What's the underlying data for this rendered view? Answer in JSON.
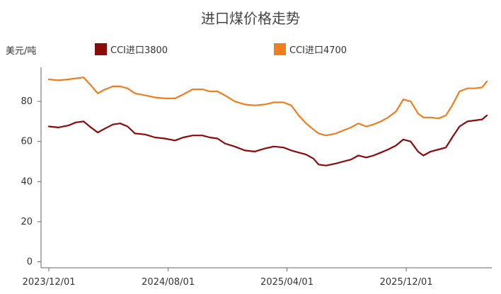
{
  "chart_data": {
    "type": "line",
    "title": "进口煤价格走势",
    "ylabel": "美元/吨",
    "xlabel": "",
    "ylim": [
      -3,
      97
    ],
    "xlim": [
      "2023-11-15",
      "2026-05-25"
    ],
    "yticks": [
      0,
      20,
      40,
      60,
      80
    ],
    "xticks": [
      "2023/12/01",
      "2024/08/01",
      "2025/04/01",
      "2025/12/01"
    ],
    "legend_position": "top",
    "grid": false,
    "series": [
      {
        "name": "CCI进口3800",
        "color": "#8B0A0A",
        "points": [
          [
            "2023-12-01",
            67.5
          ],
          [
            "2023-12-20",
            67.0
          ],
          [
            "2024-01-10",
            68.0
          ],
          [
            "2024-01-25",
            69.5
          ],
          [
            "2024-02-10",
            70.0
          ],
          [
            "2024-02-25",
            67.0
          ],
          [
            "2024-03-10",
            64.5
          ],
          [
            "2024-03-25",
            66.5
          ],
          [
            "2024-04-10",
            68.5
          ],
          [
            "2024-04-25",
            69.0
          ],
          [
            "2024-05-10",
            67.5
          ],
          [
            "2024-05-25",
            64.0
          ],
          [
            "2024-06-15",
            63.5
          ],
          [
            "2024-07-05",
            62.0
          ],
          [
            "2024-07-25",
            61.5
          ],
          [
            "2024-08-15",
            60.5
          ],
          [
            "2024-09-01",
            62.0
          ],
          [
            "2024-09-20",
            63.0
          ],
          [
            "2024-10-10",
            63.0
          ],
          [
            "2024-10-25",
            62.0
          ],
          [
            "2024-11-10",
            61.5
          ],
          [
            "2024-11-25",
            59.0
          ],
          [
            "2024-12-15",
            57.5
          ],
          [
            "2025-01-05",
            55.5
          ],
          [
            "2025-01-25",
            55.0
          ],
          [
            "2025-02-15",
            56.5
          ],
          [
            "2025-03-05",
            57.5
          ],
          [
            "2025-03-25",
            57.0
          ],
          [
            "2025-04-10",
            55.5
          ],
          [
            "2025-04-25",
            54.5
          ],
          [
            "2025-05-10",
            53.5
          ],
          [
            "2025-05-25",
            51.5
          ],
          [
            "2025-06-05",
            48.5
          ],
          [
            "2025-06-20",
            48.0
          ],
          [
            "2025-07-10",
            49.0
          ],
          [
            "2025-07-25",
            50.0
          ],
          [
            "2025-08-10",
            51.0
          ],
          [
            "2025-08-25",
            53.0
          ],
          [
            "2025-09-10",
            52.0
          ],
          [
            "2025-09-25",
            53.0
          ],
          [
            "2025-10-10",
            54.5
          ],
          [
            "2025-10-25",
            56.0
          ],
          [
            "2025-11-10",
            58.0
          ],
          [
            "2025-11-25",
            61.0
          ],
          [
            "2025-12-10",
            60.0
          ],
          [
            "2025-12-25",
            55.0
          ],
          [
            "2026-01-05",
            53.0
          ],
          [
            "2026-01-20",
            55.0
          ],
          [
            "2026-02-05",
            56.0
          ],
          [
            "2026-02-20",
            57.0
          ],
          [
            "2026-03-05",
            62.0
          ],
          [
            "2026-03-20",
            67.5
          ],
          [
            "2026-04-05",
            70.0
          ],
          [
            "2026-04-20",
            70.5
          ],
          [
            "2026-05-05",
            71.0
          ],
          [
            "2026-05-15",
            73.0
          ]
        ]
      },
      {
        "name": "CCI进口4700",
        "color": "#F07E1E",
        "points": [
          [
            "2023-12-01",
            91.0
          ],
          [
            "2023-12-20",
            90.5
          ],
          [
            "2024-01-10",
            91.0
          ],
          [
            "2024-01-25",
            91.5
          ],
          [
            "2024-02-10",
            92.0
          ],
          [
            "2024-02-25",
            88.0
          ],
          [
            "2024-03-10",
            84.0
          ],
          [
            "2024-03-25",
            86.0
          ],
          [
            "2024-04-10",
            87.5
          ],
          [
            "2024-04-25",
            87.5
          ],
          [
            "2024-05-10",
            86.5
          ],
          [
            "2024-05-25",
            84.0
          ],
          [
            "2024-06-15",
            83.0
          ],
          [
            "2024-07-05",
            82.0
          ],
          [
            "2024-07-25",
            81.5
          ],
          [
            "2024-08-15",
            81.5
          ],
          [
            "2024-09-01",
            83.5
          ],
          [
            "2024-09-20",
            86.0
          ],
          [
            "2024-10-10",
            86.0
          ],
          [
            "2024-10-25",
            85.0
          ],
          [
            "2024-11-10",
            85.0
          ],
          [
            "2024-11-25",
            83.0
          ],
          [
            "2024-12-15",
            80.0
          ],
          [
            "2025-01-05",
            78.5
          ],
          [
            "2025-01-25",
            78.0
          ],
          [
            "2025-02-15",
            78.5
          ],
          [
            "2025-03-05",
            79.5
          ],
          [
            "2025-03-25",
            79.5
          ],
          [
            "2025-04-10",
            78.0
          ],
          [
            "2025-04-25",
            73.0
          ],
          [
            "2025-05-10",
            69.0
          ],
          [
            "2025-05-25",
            66.0
          ],
          [
            "2025-06-05",
            64.0
          ],
          [
            "2025-06-20",
            63.0
          ],
          [
            "2025-07-10",
            64.0
          ],
          [
            "2025-07-25",
            65.5
          ],
          [
            "2025-08-10",
            67.0
          ],
          [
            "2025-08-25",
            69.0
          ],
          [
            "2025-09-10",
            67.5
          ],
          [
            "2025-09-25",
            68.5
          ],
          [
            "2025-10-10",
            70.0
          ],
          [
            "2025-10-25",
            72.0
          ],
          [
            "2025-11-10",
            75.0
          ],
          [
            "2025-11-25",
            81.0
          ],
          [
            "2025-12-10",
            80.0
          ],
          [
            "2025-12-25",
            74.0
          ],
          [
            "2026-01-05",
            72.0
          ],
          [
            "2026-01-20",
            72.0
          ],
          [
            "2026-02-05",
            71.5
          ],
          [
            "2026-02-20",
            73.0
          ],
          [
            "2026-03-05",
            78.0
          ],
          [
            "2026-03-20",
            85.0
          ],
          [
            "2026-04-05",
            86.5
          ],
          [
            "2026-04-20",
            86.5
          ],
          [
            "2026-05-05",
            87.0
          ],
          [
            "2026-05-15",
            90.0
          ]
        ]
      }
    ]
  }
}
